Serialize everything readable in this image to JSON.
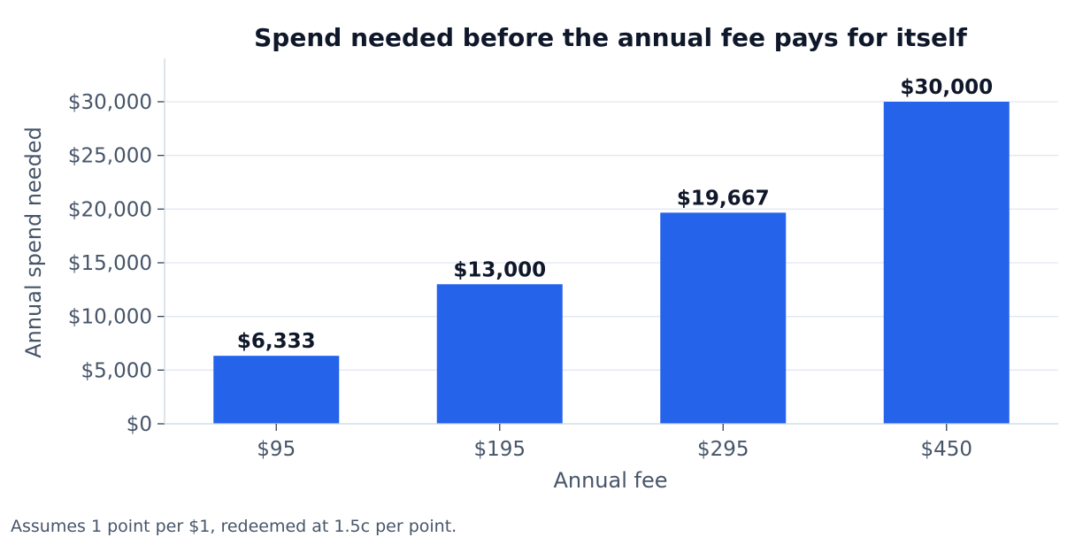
{
  "chart_data": {
    "type": "bar",
    "title": "Spend needed before the annual fee pays for itself",
    "xlabel": "Annual fee",
    "ylabel": "Annual spend needed",
    "categories": [
      "$95",
      "$195",
      "$295",
      "$450"
    ],
    "values": [
      6333,
      13000,
      19667,
      30000
    ],
    "data_labels": [
      "$6,333",
      "$13,000",
      "$19,667",
      "$30,000"
    ],
    "ylim": [
      0,
      34000
    ],
    "yticks": [
      0,
      5000,
      10000,
      15000,
      20000,
      25000,
      30000
    ],
    "ytick_labels": [
      "$0",
      "$5,000",
      "$10,000",
      "$15,000",
      "$20,000",
      "$25,000",
      "$30,000"
    ],
    "grid": "horizontal",
    "legend": "none",
    "colors": {
      "bar": "#2563eb",
      "grid": "#e2e8f0",
      "axis": "#cbd5e1",
      "title": "#0f172a",
      "text": "#475569"
    }
  },
  "footnote": "Assumes 1 point per $1, redeemed at 1.5c per point."
}
